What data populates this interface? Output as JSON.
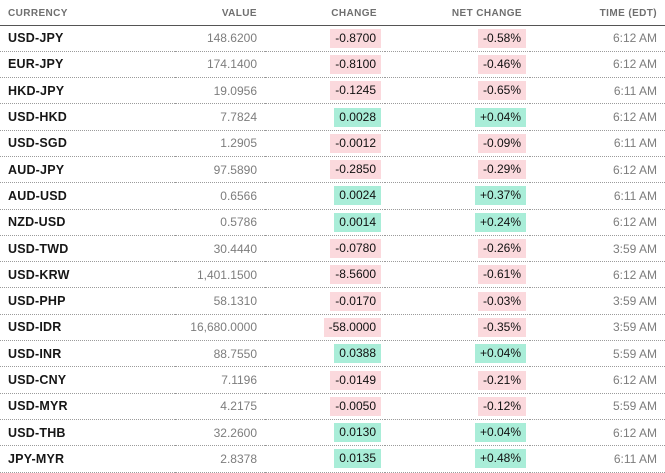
{
  "colors": {
    "positive_bg": "#a9edd8",
    "negative_bg": "#fbd9dd",
    "header_text": "#6f6f6f",
    "muted_text": "#7d7d7d",
    "currency_text": "#161616"
  },
  "table": {
    "columns": [
      "CURRENCY",
      "VALUE",
      "CHANGE",
      "NET CHANGE",
      "TIME (EDT)"
    ],
    "rows": [
      {
        "currency": "USD-JPY",
        "value": "148.6200",
        "change": "-0.8700",
        "net_change": "-0.58%",
        "time": "6:12 AM",
        "dir": "down"
      },
      {
        "currency": "EUR-JPY",
        "value": "174.1400",
        "change": "-0.8100",
        "net_change": "-0.46%",
        "time": "6:12 AM",
        "dir": "down"
      },
      {
        "currency": "HKD-JPY",
        "value": "19.0956",
        "change": "-0.1245",
        "net_change": "-0.65%",
        "time": "6:11 AM",
        "dir": "down"
      },
      {
        "currency": "USD-HKD",
        "value": "7.7824",
        "change": "0.0028",
        "net_change": "+0.04%",
        "time": "6:12 AM",
        "dir": "up"
      },
      {
        "currency": "USD-SGD",
        "value": "1.2905",
        "change": "-0.0012",
        "net_change": "-0.09%",
        "time": "6:11 AM",
        "dir": "down"
      },
      {
        "currency": "AUD-JPY",
        "value": "97.5890",
        "change": "-0.2850",
        "net_change": "-0.29%",
        "time": "6:12 AM",
        "dir": "down"
      },
      {
        "currency": "AUD-USD",
        "value": "0.6566",
        "change": "0.0024",
        "net_change": "+0.37%",
        "time": "6:11 AM",
        "dir": "up"
      },
      {
        "currency": "NZD-USD",
        "value": "0.5786",
        "change": "0.0014",
        "net_change": "+0.24%",
        "time": "6:12 AM",
        "dir": "up"
      },
      {
        "currency": "USD-TWD",
        "value": "30.4440",
        "change": "-0.0780",
        "net_change": "-0.26%",
        "time": "3:59 AM",
        "dir": "down"
      },
      {
        "currency": "USD-KRW",
        "value": "1,401.1500",
        "change": "-8.5600",
        "net_change": "-0.61%",
        "time": "6:12 AM",
        "dir": "down"
      },
      {
        "currency": "USD-PHP",
        "value": "58.1310",
        "change": "-0.0170",
        "net_change": "-0.03%",
        "time": "3:59 AM",
        "dir": "down"
      },
      {
        "currency": "USD-IDR",
        "value": "16,680.0000",
        "change": "-58.0000",
        "net_change": "-0.35%",
        "time": "3:59 AM",
        "dir": "down"
      },
      {
        "currency": "USD-INR",
        "value": "88.7550",
        "change": "0.0388",
        "net_change": "+0.04%",
        "time": "5:59 AM",
        "dir": "up"
      },
      {
        "currency": "USD-CNY",
        "value": "7.1196",
        "change": "-0.0149",
        "net_change": "-0.21%",
        "time": "6:12 AM",
        "dir": "down"
      },
      {
        "currency": "USD-MYR",
        "value": "4.2175",
        "change": "-0.0050",
        "net_change": "-0.12%",
        "time": "5:59 AM",
        "dir": "down"
      },
      {
        "currency": "USD-THB",
        "value": "32.2600",
        "change": "0.0130",
        "net_change": "+0.04%",
        "time": "6:12 AM",
        "dir": "up"
      },
      {
        "currency": "JPY-MYR",
        "value": "2.8378",
        "change": "0.0135",
        "net_change": "+0.48%",
        "time": "6:11 AM",
        "dir": "up"
      }
    ]
  }
}
